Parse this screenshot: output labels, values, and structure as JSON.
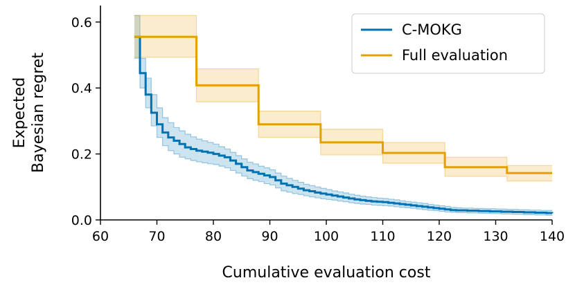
{
  "chart_data": {
    "type": "line",
    "title": "",
    "xlabel": "Cumulative evaluation cost",
    "ylabel_lines": [
      "Expected",
      "Bayesian regret"
    ],
    "xlim": [
      60,
      140
    ],
    "ylim": [
      0.0,
      0.65
    ],
    "xticks": [
      60,
      70,
      80,
      90,
      100,
      110,
      120,
      130,
      140
    ],
    "xtick_labels": [
      "60",
      "70",
      "80",
      "90",
      "100",
      "110",
      "120",
      "130",
      "140"
    ],
    "yticks": [
      0.0,
      0.2,
      0.4,
      0.6
    ],
    "ytick_labels": [
      "0.0",
      "0.2",
      "0.4",
      "0.6"
    ],
    "legend": {
      "position": "top-right",
      "entries": [
        "C-MOKG",
        "Full evaluation"
      ]
    },
    "series": [
      {
        "name": "C-MOKG",
        "color": "#0072b2",
        "step": true,
        "x": [
          66,
          67,
          68,
          69,
          70,
          71,
          72,
          73,
          74,
          75,
          76,
          77,
          78,
          79,
          80,
          81,
          82,
          83,
          84,
          85,
          86,
          87,
          88,
          89,
          90,
          91,
          92,
          93,
          94,
          95,
          96,
          97,
          98,
          99,
          100,
          101,
          102,
          103,
          104,
          105,
          106,
          107,
          108,
          109,
          110,
          111,
          112,
          113,
          114,
          115,
          116,
          117,
          118,
          119,
          120,
          121,
          122,
          123,
          124,
          125,
          126,
          127,
          128,
          129,
          130,
          131,
          132,
          133,
          134,
          135,
          136,
          137,
          138,
          139,
          140
        ],
        "mean": [
          0.555,
          0.445,
          0.38,
          0.325,
          0.29,
          0.265,
          0.25,
          0.24,
          0.23,
          0.22,
          0.215,
          0.21,
          0.207,
          0.204,
          0.2,
          0.195,
          0.19,
          0.18,
          0.17,
          0.16,
          0.15,
          0.145,
          0.14,
          0.135,
          0.13,
          0.12,
          0.11,
          0.105,
          0.1,
          0.095,
          0.09,
          0.087,
          0.083,
          0.08,
          0.077,
          0.074,
          0.071,
          0.068,
          0.065,
          0.062,
          0.06,
          0.058,
          0.056,
          0.055,
          0.054,
          0.052,
          0.05,
          0.048,
          0.046,
          0.044,
          0.042,
          0.04,
          0.038,
          0.036,
          0.034,
          0.032,
          0.03,
          0.029,
          0.029,
          0.028,
          0.028,
          0.027,
          0.027,
          0.026,
          0.026,
          0.025,
          0.025,
          0.024,
          0.024,
          0.023,
          0.023,
          0.022,
          0.022,
          0.021,
          0.02
        ],
        "upper": [
          0.62,
          0.49,
          0.43,
          0.38,
          0.34,
          0.31,
          0.295,
          0.28,
          0.27,
          0.26,
          0.252,
          0.245,
          0.24,
          0.235,
          0.23,
          0.222,
          0.215,
          0.205,
          0.195,
          0.185,
          0.175,
          0.17,
          0.163,
          0.158,
          0.152,
          0.142,
          0.133,
          0.126,
          0.12,
          0.114,
          0.108,
          0.104,
          0.1,
          0.096,
          0.092,
          0.088,
          0.085,
          0.082,
          0.078,
          0.075,
          0.072,
          0.07,
          0.068,
          0.066,
          0.065,
          0.063,
          0.061,
          0.058,
          0.056,
          0.054,
          0.052,
          0.05,
          0.047,
          0.045,
          0.043,
          0.041,
          0.038,
          0.037,
          0.036,
          0.036,
          0.035,
          0.035,
          0.034,
          0.034,
          0.033,
          0.033,
          0.032,
          0.032,
          0.031,
          0.031,
          0.03,
          0.03,
          0.029,
          0.029,
          0.028
        ],
        "lower": [
          0.49,
          0.4,
          0.34,
          0.285,
          0.25,
          0.225,
          0.21,
          0.2,
          0.19,
          0.185,
          0.18,
          0.176,
          0.173,
          0.17,
          0.168,
          0.163,
          0.158,
          0.15,
          0.142,
          0.133,
          0.125,
          0.12,
          0.116,
          0.11,
          0.106,
          0.097,
          0.088,
          0.084,
          0.08,
          0.077,
          0.073,
          0.07,
          0.067,
          0.064,
          0.062,
          0.06,
          0.057,
          0.055,
          0.052,
          0.05,
          0.048,
          0.047,
          0.045,
          0.044,
          0.043,
          0.042,
          0.04,
          0.038,
          0.037,
          0.035,
          0.033,
          0.031,
          0.029,
          0.028,
          0.026,
          0.024,
          0.023,
          0.022,
          0.022,
          0.021,
          0.021,
          0.02,
          0.02,
          0.019,
          0.019,
          0.018,
          0.018,
          0.017,
          0.017,
          0.016,
          0.016,
          0.015,
          0.015,
          0.014,
          0.013
        ]
      },
      {
        "name": "Full evaluation",
        "color": "#e69f00",
        "step": true,
        "x": [
          66,
          77,
          88,
          99,
          110,
          121,
          132,
          140
        ],
        "mean": [
          0.555,
          0.408,
          0.29,
          0.235,
          0.203,
          0.16,
          0.142,
          0.142
        ],
        "upper": [
          0.62,
          0.458,
          0.33,
          0.275,
          0.235,
          0.19,
          0.165,
          0.165
        ],
        "lower": [
          0.493,
          0.358,
          0.25,
          0.197,
          0.172,
          0.132,
          0.118,
          0.118
        ]
      }
    ]
  }
}
